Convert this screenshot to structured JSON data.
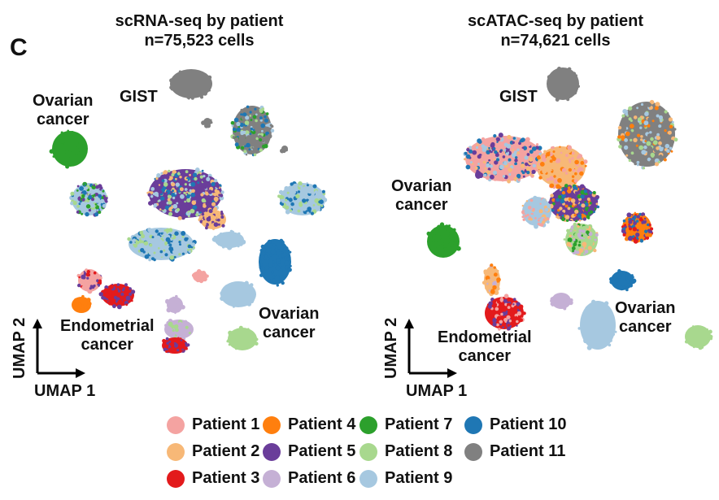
{
  "panel_letter": "C",
  "chart_data": [
    {
      "type": "scatter",
      "title": "scRNA-seq by patient",
      "subtitle": "n=75,523 cells",
      "xlabel": "UMAP 1",
      "ylabel": "UMAP 2",
      "annotations": [
        "GIST",
        "Ovarian\ncancer",
        "Endometrial\ncancer",
        "Ovarian\ncancer"
      ],
      "grid": false,
      "legend": "bottom"
    },
    {
      "type": "scatter",
      "title": "scATAC-seq by patient",
      "subtitle": "n=74,621 cells",
      "xlabel": "UMAP 1",
      "ylabel": "UMAP 2",
      "annotations": [
        "GIST",
        "Ovarian\ncancer",
        "Endometrial\ncancer",
        "Ovarian\ncancer"
      ],
      "grid": false,
      "legend": "bottom"
    }
  ],
  "legend": [
    {
      "label": "Patient 1",
      "color": "#f4a3a1"
    },
    {
      "label": "Patient 2",
      "color": "#f7b877"
    },
    {
      "label": "Patient 3",
      "color": "#e31a1c"
    },
    {
      "label": "Patient 4",
      "color": "#ff7f0e"
    },
    {
      "label": "Patient 5",
      "color": "#6a3d9a"
    },
    {
      "label": "Patient 6",
      "color": "#c5b0d5"
    },
    {
      "label": "Patient 7",
      "color": "#2ca02c"
    },
    {
      "label": "Patient 8",
      "color": "#a8d88e"
    },
    {
      "label": "Patient 9",
      "color": "#a6c8e0"
    },
    {
      "label": "Patient 10",
      "color": "#1f77b4"
    },
    {
      "label": "Patient 11",
      "color": "#808080"
    }
  ]
}
